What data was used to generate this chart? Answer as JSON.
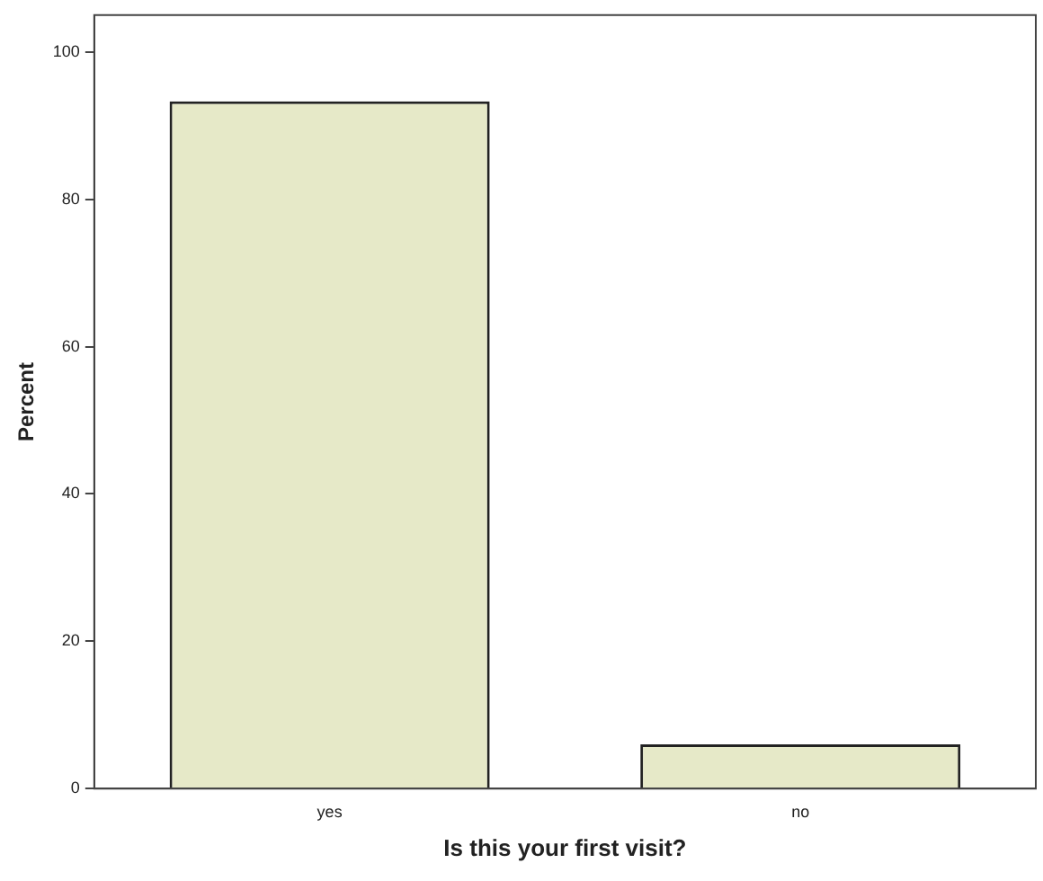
{
  "chart_data": {
    "type": "bar",
    "xlabel": "Is this your first visit?",
    "ylabel": "Percent",
    "categories": [
      "yes",
      "no"
    ],
    "values": [
      93.3,
      6.0
    ],
    "color": "#e6e9c8",
    "ylim": [
      0,
      105
    ],
    "yticks": [
      0,
      20,
      40,
      60,
      80,
      100
    ],
    "grid": false,
    "legend": false
  }
}
